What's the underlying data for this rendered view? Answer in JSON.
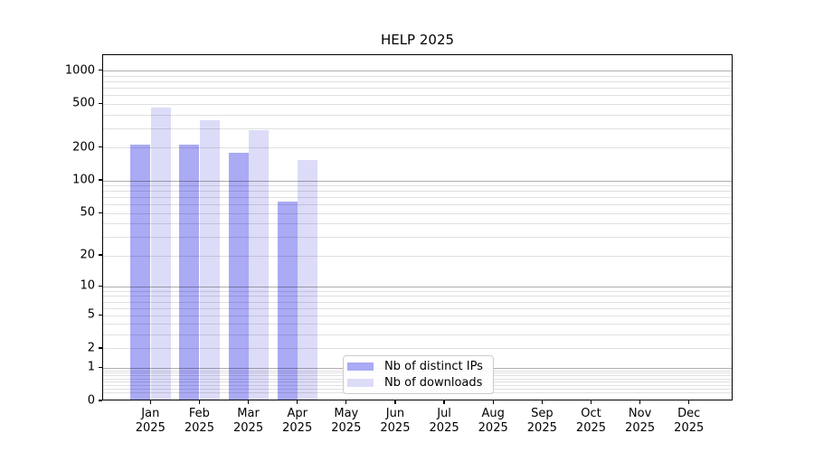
{
  "title": "HELP 2025",
  "chart_data": {
    "type": "bar",
    "title": "HELP 2025",
    "y_scale": "log10(1+y)",
    "ylim": [
      0,
      1400
    ],
    "grid": "on",
    "legend_position": "lower center (inside plot)",
    "categories": [
      "Jan 2025",
      "Feb 2025",
      "Mar 2025",
      "Apr 2025",
      "May 2025",
      "Jun 2025",
      "Jul 2025",
      "Aug 2025",
      "Sep 2025",
      "Oct 2025",
      "Nov 2025",
      "Dec 2025"
    ],
    "series": [
      {
        "name": "Nb of distinct IPs",
        "color": "#aaaaf5",
        "values": [
          215,
          215,
          180,
          65,
          0,
          0,
          0,
          0,
          0,
          0,
          0,
          0
        ]
      },
      {
        "name": "Nb of downloads",
        "color": "#dcdcf8",
        "values": [
          470,
          360,
          290,
          155,
          0,
          0,
          0,
          0,
          0,
          0,
          0,
          0
        ]
      }
    ],
    "y_ticks": [
      0,
      1,
      2,
      5,
      10,
      20,
      50,
      100,
      200,
      500,
      1000
    ],
    "grid_major": [
      1,
      10,
      100,
      1000
    ],
    "grid_minor": [
      0.2,
      0.3,
      0.4,
      0.5,
      0.6,
      0.7,
      0.8,
      0.9,
      2,
      3,
      4,
      5,
      6,
      7,
      8,
      9,
      20,
      30,
      40,
      50,
      60,
      70,
      80,
      90,
      200,
      300,
      400,
      500,
      600,
      700,
      800,
      900
    ]
  },
  "colors": {
    "axis": "#000000",
    "background": "#ffffff",
    "grid_major": "rgba(0,0,0,0.32)",
    "grid_minor": "rgba(0,0,0,0.12)",
    "ips_bar": "#aaaaf5",
    "downloads_bar": "#dcdcf8"
  }
}
